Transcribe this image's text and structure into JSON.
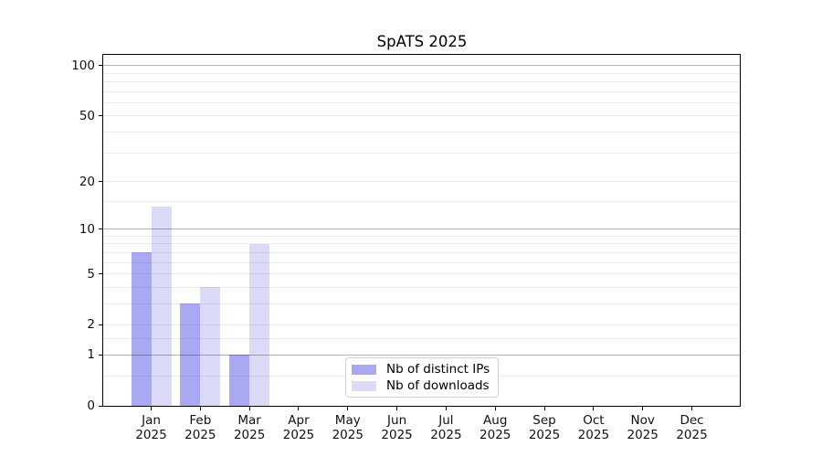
{
  "title": "SpATS 2025",
  "colors": {
    "distinct_ips": "#a9a9f3",
    "downloads": "#dbdbf8",
    "grid_major": "rgba(0,0,0,0.30)",
    "grid_minor": "rgba(0,0,0,0.08)",
    "spine": "#000000",
    "text": "#111111"
  },
  "legend": {
    "items": [
      {
        "label": "Nb of distinct IPs",
        "color_key": "distinct_ips"
      },
      {
        "label": "Nb of downloads",
        "color_key": "downloads"
      }
    ]
  },
  "x_axis": {
    "year": "2025",
    "months": [
      "Jan",
      "Feb",
      "Mar",
      "Apr",
      "May",
      "Jun",
      "Jul",
      "Aug",
      "Sep",
      "Oct",
      "Nov",
      "Dec"
    ]
  },
  "y_axis": {
    "tick_labels": [
      0,
      1,
      2,
      5,
      10,
      20,
      50,
      100
    ]
  },
  "chart_data": {
    "type": "bar",
    "title": "SpATS 2025",
    "categories": [
      "Jan 2025",
      "Feb 2025",
      "Mar 2025",
      "Apr 2025",
      "May 2025",
      "Jun 2025",
      "Jul 2025",
      "Aug 2025",
      "Sep 2025",
      "Oct 2025",
      "Nov 2025",
      "Dec 2025"
    ],
    "series": [
      {
        "name": "Nb of distinct IPs",
        "values": [
          7,
          3,
          1,
          0,
          0,
          0,
          0,
          0,
          0,
          0,
          0,
          0
        ]
      },
      {
        "name": "Nb of downloads",
        "values": [
          14,
          4,
          8,
          0,
          0,
          0,
          0,
          0,
          0,
          0,
          0,
          0
        ]
      }
    ],
    "xlabel": "",
    "ylabel": "",
    "yscale": "log1p",
    "ylim": [
      0,
      116
    ],
    "yticks": [
      0,
      1,
      2,
      5,
      10,
      20,
      50,
      100
    ],
    "grid_major_values": [
      1,
      10,
      100
    ],
    "grid_minor_values": [
      0.5,
      1.5,
      2,
      3,
      4,
      5,
      6,
      7,
      8,
      9,
      15,
      20,
      30,
      40,
      50,
      60,
      70,
      80,
      90
    ],
    "grid": true,
    "legend_position": "lower center"
  }
}
